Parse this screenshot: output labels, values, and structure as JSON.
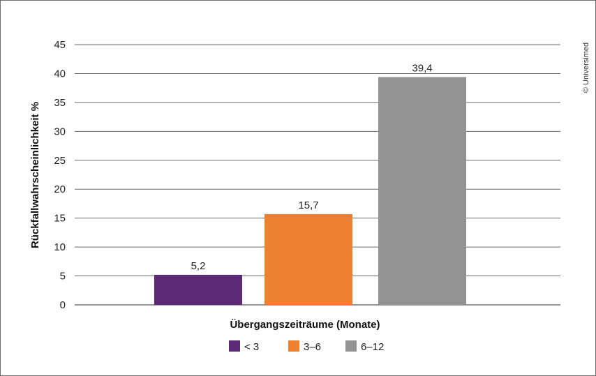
{
  "chart_data": {
    "type": "bar",
    "categories": [
      "< 3",
      "3–6",
      "6–12"
    ],
    "values": [
      5.2,
      15.7,
      39.4
    ],
    "value_labels": [
      "5,2",
      "15,7",
      "39,4"
    ],
    "colors": [
      "#5c2a77",
      "#ef8032",
      "#939393"
    ],
    "title": "",
    "xlabel": "Übergangszeiträume (Monate)",
    "ylabel": "Rückfallwahrscheinlichkeit %",
    "ylim": [
      0,
      45
    ],
    "yticks": [
      0,
      5,
      10,
      15,
      20,
      25,
      30,
      35,
      40,
      45
    ],
    "grid": true,
    "legend": {
      "placement": "bottom",
      "entries": [
        "< 3",
        "3–6",
        "6–12"
      ]
    }
  },
  "credit": "© Universimed"
}
